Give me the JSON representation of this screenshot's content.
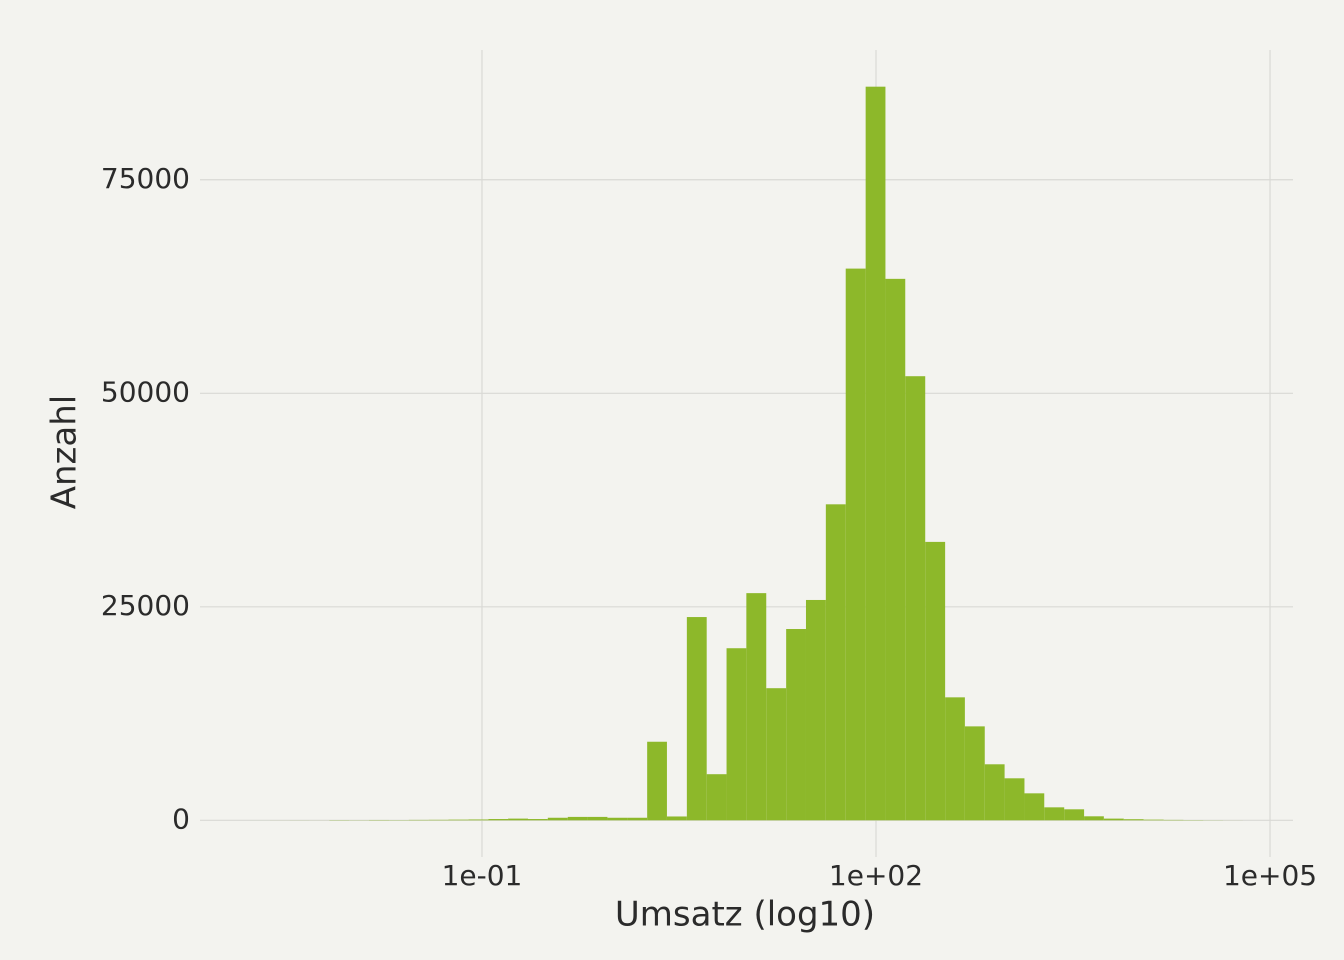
{
  "chart_data": {
    "type": "histogram",
    "x_label": "Umsatz (log10)",
    "y_label": "Anzahl",
    "bins": [
      0.00171,
      0.00243,
      0.00344,
      0.00486,
      0.00689,
      0.00975,
      0.0138,
      0.0196,
      0.0277,
      0.0393,
      0.0556,
      0.0788,
      0.112,
      0.158,
      0.224,
      0.317,
      0.45,
      0.637,
      0.902,
      1.28,
      1.81,
      2.56,
      3.63,
      5.14,
      7.28,
      10.3,
      14.6,
      20.7,
      29.3,
      41.5,
      58.8,
      83.4,
      118,
      167,
      237,
      336,
      475,
      673,
      953,
      1350,
      1910,
      2710,
      3840,
      5430,
      7700,
      10900,
      15500,
      21900,
      31000,
      43900,
      62200
    ],
    "values": [
      2,
      5,
      10,
      5,
      30,
      20,
      40,
      30,
      50,
      60,
      80,
      100,
      150,
      200,
      150,
      300,
      400,
      400,
      300,
      300,
      9200,
      450,
      23800,
      5400,
      20150,
      26600,
      15470,
      22400,
      25800,
      37000,
      64600,
      85900,
      63400,
      52000,
      32600,
      14400,
      11000,
      6560,
      4920,
      3160,
      1520,
      1290,
      470,
      200,
      130,
      80,
      50,
      30,
      15,
      5
    ],
    "color": "#8db82a",
    "x_log": true,
    "xlim": [
      0.000713,
      149600
    ],
    "xticks": [
      {
        "value": 0.1,
        "label": "1e-01"
      },
      {
        "value": 100,
        "label": "1e+02"
      },
      {
        "value": 100000,
        "label": "1e+05"
      }
    ],
    "ylim": [
      -4295,
      90195
    ],
    "yticks": [
      0,
      25000,
      50000,
      75000
    ],
    "grid": true
  }
}
